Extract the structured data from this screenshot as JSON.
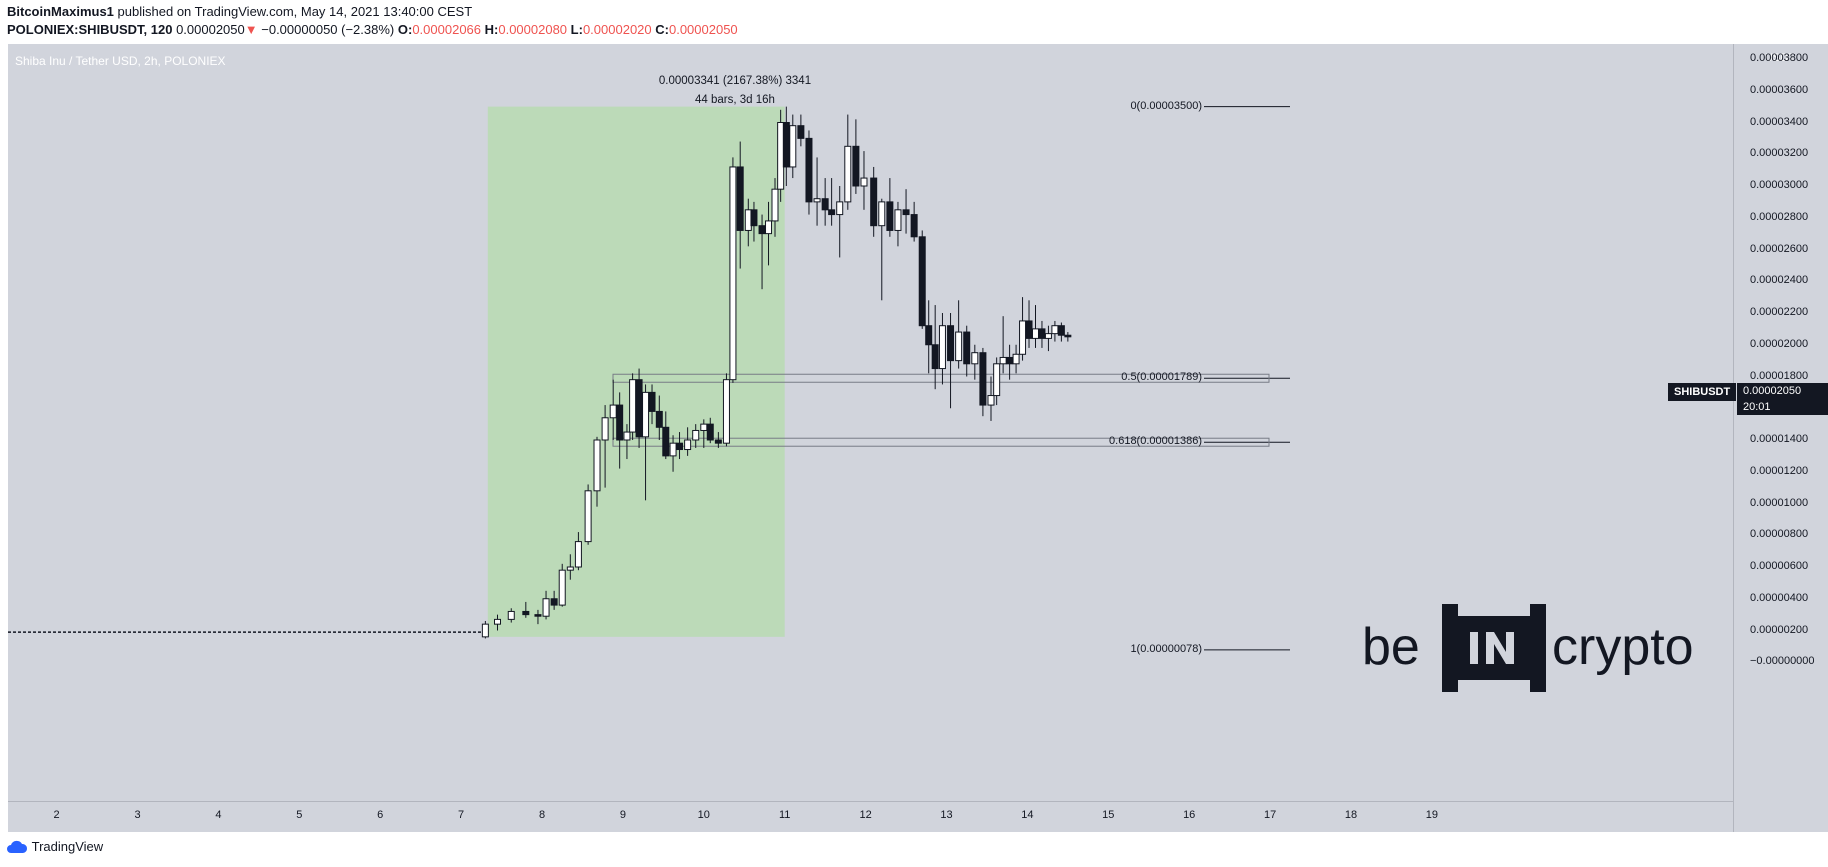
{
  "header": {
    "publisher": "BitcoinMaximus1",
    "published_text": "published on TradingView.com, May 14, 2021 13:40:00 CEST",
    "symbol_line": "POLONIEX:SHIBUSDT, 120",
    "last": "0.00002050",
    "arrow": "▼",
    "change": "−0.00000050 (−2.38%)",
    "o_label": "O:",
    "o_value": "0.00002066",
    "h_label": "H:",
    "h_value": "0.00002080",
    "l_label": "L:",
    "l_value": "0.00002020",
    "c_label": "C:",
    "c_value": "0.00002050"
  },
  "chart_title": "Shiba Inu / Tether USD, 2h, POLONIEX",
  "measure": {
    "line1": "0.00003341 (2167.38%) 3341",
    "line2": "44 bars, 3d 16h"
  },
  "fib_labels": {
    "level_0": "0(0.00003500)",
    "level_05": "0.5(0.00001789)",
    "level_0618": "0.618(0.00001386)",
    "level_1": "1(0.00000078)"
  },
  "price_tag": {
    "symbol": "SHIBUSDT",
    "price": "0.00002050",
    "countdown": "20:01"
  },
  "footer": {
    "brand": "TradingView"
  },
  "watermark": "be[IN]crypto",
  "colors": {
    "background": "#d1d4dc",
    "measure_box": "#bcdab8",
    "bull_body": "#ffffff",
    "bear_body": "#131722",
    "down_text": "#ef5350"
  },
  "chart_data": {
    "type": "candlestick",
    "title": "Shiba Inu / Tether USD, 2h, POLONIEX",
    "ylabel": "USDT",
    "ylim": [
      -1e-06,
      3.85e-05
    ],
    "y_ticks": [
      "0.00003800",
      "0.00003600",
      "0.00003400",
      "0.00003200",
      "0.00003000",
      "0.00002800",
      "0.00002600",
      "0.00002400",
      "0.00002200",
      "0.00002000",
      "0.00001800",
      "0.00001600",
      "0.00001400",
      "0.00001200",
      "0.00001000",
      "0.00000800",
      "0.00000600",
      "0.00000400",
      "0.00000200",
      "−0.00000000"
    ],
    "x_ticks": [
      "2",
      "3",
      "4",
      "5",
      "6",
      "7",
      "8",
      "9",
      "10",
      "11",
      "12",
      "13",
      "14",
      "15",
      "16",
      "17",
      "18",
      "19"
    ],
    "xlim": [
      1.4,
      20.7
    ],
    "fibonacci": [
      {
        "level": "0",
        "price": 3.5e-05
      },
      {
        "level": "0.5",
        "price": 1.789e-05
      },
      {
        "level": "0.618",
        "price": 1.386e-05
      },
      {
        "level": "1",
        "price": 7.8e-07
      }
    ],
    "measure_range": {
      "x_start": 7.33,
      "x_end": 11.0,
      "y_low": 1.6e-06,
      "y_high": 3.5e-05
    },
    "candles": [
      {
        "t": 7.3,
        "o": 1.6e-06,
        "h": 2.6e-06,
        "l": 1.5e-06,
        "c": 2.4e-06
      },
      {
        "t": 7.45,
        "o": 2.4e-06,
        "h": 3e-06,
        "l": 2e-06,
        "c": 2.7e-06
      },
      {
        "t": 7.62,
        "o": 2.7e-06,
        "h": 3.4e-06,
        "l": 2.5e-06,
        "c": 3.2e-06
      },
      {
        "t": 7.8,
        "o": 3.2e-06,
        "h": 3.8e-06,
        "l": 2.8e-06,
        "c": 3e-06
      },
      {
        "t": 7.95,
        "o": 3e-06,
        "h": 3.3e-06,
        "l": 2.4e-06,
        "c": 2.9e-06
      },
      {
        "t": 8.05,
        "o": 2.9e-06,
        "h": 4.5e-06,
        "l": 2.7e-06,
        "c": 4e-06
      },
      {
        "t": 8.15,
        "o": 4e-06,
        "h": 4.5e-06,
        "l": 3.3e-06,
        "c": 3.6e-06
      },
      {
        "t": 8.25,
        "o": 3.6e-06,
        "h": 6.2e-06,
        "l": 3.5e-06,
        "c": 5.8e-06
      },
      {
        "t": 8.35,
        "o": 5.8e-06,
        "h": 6.8e-06,
        "l": 5.2e-06,
        "c": 6e-06
      },
      {
        "t": 8.45,
        "o": 6e-06,
        "h": 8.2e-06,
        "l": 5.8e-06,
        "c": 7.6e-06
      },
      {
        "t": 8.57,
        "o": 7.6e-06,
        "h": 1.12e-05,
        "l": 7.4e-06,
        "c": 1.08e-05
      },
      {
        "t": 8.68,
        "o": 1.08e-05,
        "h": 1.42e-05,
        "l": 9.8e-06,
        "c": 1.4e-05
      },
      {
        "t": 8.78,
        "o": 1.4e-05,
        "h": 1.62e-05,
        "l": 1.1e-05,
        "c": 1.54e-05
      },
      {
        "t": 8.88,
        "o": 1.54e-05,
        "h": 1.78e-05,
        "l": 1.4e-05,
        "c": 1.62e-05
      },
      {
        "t": 8.96,
        "o": 1.62e-05,
        "h": 1.7e-05,
        "l": 1.22e-05,
        "c": 1.4e-05
      },
      {
        "t": 9.05,
        "o": 1.4e-05,
        "h": 1.5e-05,
        "l": 1.28e-05,
        "c": 1.45e-05
      },
      {
        "t": 9.12,
        "o": 1.45e-05,
        "h": 1.82e-05,
        "l": 1.4e-05,
        "c": 1.78e-05
      },
      {
        "t": 9.2,
        "o": 1.78e-05,
        "h": 1.85e-05,
        "l": 1.35e-05,
        "c": 1.42e-05
      },
      {
        "t": 9.28,
        "o": 1.42e-05,
        "h": 1.75e-05,
        "l": 1.02e-05,
        "c": 1.7e-05
      },
      {
        "t": 9.36,
        "o": 1.7e-05,
        "h": 1.75e-05,
        "l": 1.5e-05,
        "c": 1.58e-05
      },
      {
        "t": 9.45,
        "o": 1.58e-05,
        "h": 1.68e-05,
        "l": 1.4e-05,
        "c": 1.48e-05
      },
      {
        "t": 9.53,
        "o": 1.48e-05,
        "h": 1.58e-05,
        "l": 1.28e-05,
        "c": 1.3e-05
      },
      {
        "t": 9.62,
        "o": 1.3e-05,
        "h": 1.43e-05,
        "l": 1.2e-05,
        "c": 1.38e-05
      },
      {
        "t": 9.7,
        "o": 1.38e-05,
        "h": 1.45e-05,
        "l": 1.28e-05,
        "c": 1.34e-05
      },
      {
        "t": 9.8,
        "o": 1.34e-05,
        "h": 1.48e-05,
        "l": 1.3e-05,
        "c": 1.4e-05
      },
      {
        "t": 9.9,
        "o": 1.4e-05,
        "h": 1.5e-05,
        "l": 1.35e-05,
        "c": 1.46e-05
      },
      {
        "t": 10.0,
        "o": 1.46e-05,
        "h": 1.53e-05,
        "l": 1.35e-05,
        "c": 1.5e-05
      },
      {
        "t": 10.08,
        "o": 1.5e-05,
        "h": 1.54e-05,
        "l": 1.38e-05,
        "c": 1.4e-05
      },
      {
        "t": 10.18,
        "o": 1.4e-05,
        "h": 1.45e-05,
        "l": 1.35e-05,
        "c": 1.38e-05
      },
      {
        "t": 10.28,
        "o": 1.38e-05,
        "h": 1.82e-05,
        "l": 1.36e-05,
        "c": 1.78e-05
      },
      {
        "t": 10.36,
        "o": 1.78e-05,
        "h": 3.18e-05,
        "l": 1.76e-05,
        "c": 3.12e-05
      },
      {
        "t": 10.45,
        "o": 3.12e-05,
        "h": 3.28e-05,
        "l": 2.48e-05,
        "c": 2.72e-05
      },
      {
        "t": 10.55,
        "o": 2.72e-05,
        "h": 2.92e-05,
        "l": 2.62e-05,
        "c": 2.85e-05
      },
      {
        "t": 10.62,
        "o": 2.85e-05,
        "h": 2.9e-05,
        "l": 2.65e-05,
        "c": 2.75e-05
      },
      {
        "t": 10.72,
        "o": 2.75e-05,
        "h": 2.82e-05,
        "l": 2.35e-05,
        "c": 2.7e-05
      },
      {
        "t": 10.8,
        "o": 2.7e-05,
        "h": 2.9e-05,
        "l": 2.5e-05,
        "c": 2.78e-05
      },
      {
        "t": 10.88,
        "o": 2.78e-05,
        "h": 3.05e-05,
        "l": 2.68e-05,
        "c": 2.98e-05
      },
      {
        "t": 10.95,
        "o": 2.98e-05,
        "h": 3.48e-05,
        "l": 2.9e-05,
        "c": 3.4e-05
      },
      {
        "t": 11.02,
        "o": 3.4e-05,
        "h": 3.5e-05,
        "l": 3e-05,
        "c": 3.12e-05
      },
      {
        "t": 11.1,
        "o": 3.12e-05,
        "h": 3.45e-05,
        "l": 3.05e-05,
        "c": 3.38e-05
      },
      {
        "t": 11.2,
        "o": 3.38e-05,
        "h": 3.45e-05,
        "l": 3.25e-05,
        "c": 3.3e-05
      },
      {
        "t": 11.3,
        "o": 3.3e-05,
        "h": 3.35e-05,
        "l": 2.82e-05,
        "c": 2.9e-05
      },
      {
        "t": 11.4,
        "o": 2.9e-05,
        "h": 3.18e-05,
        "l": 2.75e-05,
        "c": 2.92e-05
      },
      {
        "t": 11.5,
        "o": 2.92e-05,
        "h": 3.05e-05,
        "l": 2.75e-05,
        "c": 2.85e-05
      },
      {
        "t": 11.58,
        "o": 2.85e-05,
        "h": 3.05e-05,
        "l": 2.75e-05,
        "c": 2.82e-05
      },
      {
        "t": 11.68,
        "o": 2.82e-05,
        "h": 3e-05,
        "l": 2.55e-05,
        "c": 2.9e-05
      },
      {
        "t": 11.78,
        "o": 2.9e-05,
        "h": 3.45e-05,
        "l": 2.85e-05,
        "c": 3.25e-05
      },
      {
        "t": 11.88,
        "o": 3.25e-05,
        "h": 3.42e-05,
        "l": 2.95e-05,
        "c": 3e-05
      },
      {
        "t": 11.98,
        "o": 3e-05,
        "h": 3.22e-05,
        "l": 2.85e-05,
        "c": 3.05e-05
      },
      {
        "t": 12.1,
        "o": 3.05e-05,
        "h": 3.12e-05,
        "l": 2.68e-05,
        "c": 2.75e-05
      },
      {
        "t": 12.2,
        "o": 2.75e-05,
        "h": 2.92e-05,
        "l": 2.28e-05,
        "c": 2.9e-05
      },
      {
        "t": 12.3,
        "o": 2.9e-05,
        "h": 3.05e-05,
        "l": 2.68e-05,
        "c": 2.72e-05
      },
      {
        "t": 12.4,
        "o": 2.72e-05,
        "h": 2.9e-05,
        "l": 2.62e-05,
        "c": 2.85e-05
      },
      {
        "t": 12.5,
        "o": 2.85e-05,
        "h": 2.98e-05,
        "l": 2.7e-05,
        "c": 2.82e-05
      },
      {
        "t": 12.6,
        "o": 2.82e-05,
        "h": 2.9e-05,
        "l": 2.65e-05,
        "c": 2.68e-05
      },
      {
        "t": 12.7,
        "o": 2.68e-05,
        "h": 2.72e-05,
        "l": 2.1e-05,
        "c": 2.12e-05
      },
      {
        "t": 12.78,
        "o": 2.12e-05,
        "h": 2.28e-05,
        "l": 1.82e-05,
        "c": 2e-05
      },
      {
        "t": 12.86,
        "o": 2e-05,
        "h": 2.25e-05,
        "l": 1.72e-05,
        "c": 1.85e-05
      },
      {
        "t": 12.95,
        "o": 1.85e-05,
        "h": 2.2e-05,
        "l": 1.75e-05,
        "c": 2.12e-05
      },
      {
        "t": 13.05,
        "o": 2.12e-05,
        "h": 2.2e-05,
        "l": 1.6e-05,
        "c": 1.9e-05
      },
      {
        "t": 13.15,
        "o": 1.9e-05,
        "h": 2.28e-05,
        "l": 1.85e-05,
        "c": 2.08e-05
      },
      {
        "t": 13.25,
        "o": 2.08e-05,
        "h": 2.12e-05,
        "l": 1.8e-05,
        "c": 1.88e-05
      },
      {
        "t": 13.35,
        "o": 1.88e-05,
        "h": 2e-05,
        "l": 1.78e-05,
        "c": 1.95e-05
      },
      {
        "t": 13.45,
        "o": 1.95e-05,
        "h": 1.98e-05,
        "l": 1.55e-05,
        "c": 1.62e-05
      },
      {
        "t": 13.55,
        "o": 1.62e-05,
        "h": 1.8e-05,
        "l": 1.52e-05,
        "c": 1.68e-05
      },
      {
        "t": 13.62,
        "o": 1.68e-05,
        "h": 1.92e-05,
        "l": 1.62e-05,
        "c": 1.88e-05
      },
      {
        "t": 13.7,
        "o": 1.88e-05,
        "h": 2.18e-05,
        "l": 1.82e-05,
        "c": 1.92e-05
      },
      {
        "t": 13.78,
        "o": 1.92e-05,
        "h": 2e-05,
        "l": 1.78e-05,
        "c": 1.88e-05
      },
      {
        "t": 13.86,
        "o": 1.88e-05,
        "h": 2e-05,
        "l": 1.82e-05,
        "c": 1.94e-05
      },
      {
        "t": 13.94,
        "o": 1.94e-05,
        "h": 2.3e-05,
        "l": 1.9e-05,
        "c": 2.15e-05
      },
      {
        "t": 14.02,
        "o": 2.15e-05,
        "h": 2.28e-05,
        "l": 1.98e-05,
        "c": 2.04e-05
      },
      {
        "t": 14.1,
        "o": 2.04e-05,
        "h": 2.25e-05,
        "l": 1.98e-05,
        "c": 2.1e-05
      },
      {
        "t": 14.18,
        "o": 2.1e-05,
        "h": 2.15e-05,
        "l": 1.98e-05,
        "c": 2.04e-05
      },
      {
        "t": 14.26,
        "o": 2.04e-05,
        "h": 2.12e-05,
        "l": 1.96e-05,
        "c": 2.07e-05
      },
      {
        "t": 14.34,
        "o": 2.07e-05,
        "h": 2.15e-05,
        "l": 2.02e-05,
        "c": 2.12e-05
      },
      {
        "t": 14.42,
        "o": 2.12e-05,
        "h": 2.14e-05,
        "l": 2.02e-05,
        "c": 2.06e-05
      },
      {
        "t": 14.5,
        "o": 2.06e-05,
        "h": 2.08e-05,
        "l": 2.02e-05,
        "c": 2.05e-05
      }
    ]
  }
}
